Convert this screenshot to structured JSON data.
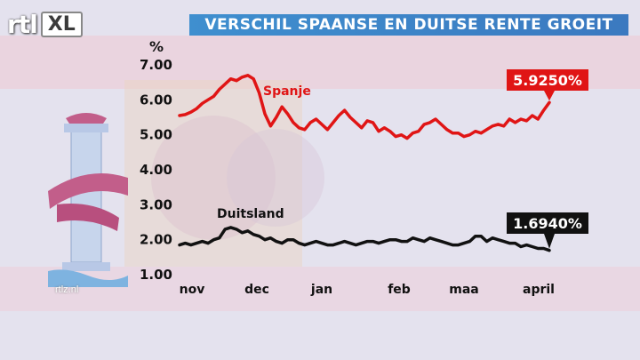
{
  "header": {
    "logo_text": "rtl",
    "logo_xl": "XL",
    "title": "VERSCHIL SPAANSE EN DUITSE RENTE GROEIT"
  },
  "footer": {
    "site": "rtlz.nl"
  },
  "colors": {
    "title_bar": "#3b84c8",
    "spain": "#e01515",
    "germany": "#111111",
    "callout_spain": "#e01515",
    "callout_germany": "#111111"
  },
  "chart_data": {
    "type": "line",
    "title": "VERSCHIL SPAANSE EN DUITSE RENTE GROEIT",
    "ylabel": "%",
    "ylim": [
      1.0,
      7.0
    ],
    "yticks": [
      "1.00",
      "2.00",
      "3.00",
      "4.00",
      "5.00",
      "6.00",
      "7.00"
    ],
    "xticks": [
      "nov",
      "dec",
      "jan",
      "feb",
      "maa",
      "april"
    ],
    "grid": false,
    "series": [
      {
        "name": "Spanje",
        "end_label": "5.9250%",
        "values": [
          5.55,
          5.58,
          5.65,
          5.75,
          5.9,
          6.0,
          6.1,
          6.3,
          6.45,
          6.6,
          6.55,
          6.65,
          6.7,
          6.6,
          6.2,
          5.6,
          5.25,
          5.5,
          5.8,
          5.6,
          5.35,
          5.2,
          5.15,
          5.35,
          5.45,
          5.3,
          5.15,
          5.35,
          5.55,
          5.7,
          5.5,
          5.35,
          5.2,
          5.4,
          5.35,
          5.1,
          5.2,
          5.1,
          4.95,
          5.0,
          4.9,
          5.05,
          5.1,
          5.3,
          5.35,
          5.45,
          5.3,
          5.15,
          5.05,
          5.05,
          4.95,
          5.0,
          5.1,
          5.05,
          5.15,
          5.25,
          5.3,
          5.25,
          5.45,
          5.35,
          5.45,
          5.4,
          5.55,
          5.45,
          5.7,
          5.925
        ]
      },
      {
        "name": "Duitsland",
        "end_label": "1.6940%",
        "values": [
          1.85,
          1.9,
          1.85,
          1.9,
          1.95,
          1.9,
          2.0,
          2.05,
          2.3,
          2.35,
          2.3,
          2.2,
          2.25,
          2.15,
          2.1,
          2.0,
          2.05,
          1.95,
          1.9,
          2.0,
          2.0,
          1.9,
          1.85,
          1.9,
          1.95,
          1.9,
          1.85,
          1.85,
          1.9,
          1.95,
          1.9,
          1.85,
          1.9,
          1.95,
          1.95,
          1.9,
          1.95,
          2.0,
          2.0,
          1.95,
          1.95,
          2.05,
          2.0,
          1.95,
          2.05,
          2.0,
          1.95,
          1.9,
          1.85,
          1.85,
          1.9,
          1.95,
          2.1,
          2.1,
          1.95,
          2.05,
          2.0,
          1.95,
          1.9,
          1.9,
          1.8,
          1.85,
          1.8,
          1.75,
          1.75,
          1.694
        ]
      }
    ]
  }
}
